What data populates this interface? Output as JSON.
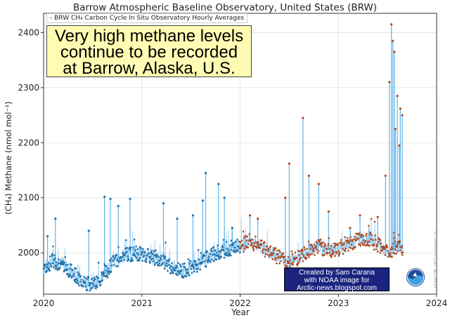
{
  "chart_data": {
    "type": "scatter",
    "title": "Barrow Atmospheric Baseline Observatory, United States (BRW)",
    "xlabel": "Year",
    "ylabel": "(CH₄) Methane (nmol mol⁻¹)",
    "xlim": [
      2020,
      2024
    ],
    "ylim": [
      1925,
      2435
    ],
    "x_ticks": [
      "2020",
      "2021",
      "2022",
      "2023",
      "2024"
    ],
    "y_ticks": [
      "2000",
      "2100",
      "2200",
      "2300",
      "2400"
    ],
    "grid": true,
    "legend": "top-left",
    "series": [
      {
        "name": "BRW CH₄ Carbon Cycle In Situ Observatory Hourly Averages",
        "color_pre2022": "#1f6fa8",
        "color_post2022": "#b5461a",
        "line_color": "#8cc8ee",
        "baseline": [
          [
            2020.0,
            1972
          ],
          [
            2020.1,
            1985
          ],
          [
            2020.2,
            1980
          ],
          [
            2020.3,
            1962
          ],
          [
            2020.4,
            1950
          ],
          [
            2020.48,
            1942
          ],
          [
            2020.55,
            1946
          ],
          [
            2020.62,
            1962
          ],
          [
            2020.72,
            1985
          ],
          [
            2020.82,
            1995
          ],
          [
            2020.92,
            2000
          ],
          [
            2021.0,
            1996
          ],
          [
            2021.1,
            1992
          ],
          [
            2021.2,
            1990
          ],
          [
            2021.3,
            1975
          ],
          [
            2021.4,
            1967
          ],
          [
            2021.5,
            1973
          ],
          [
            2021.6,
            1982
          ],
          [
            2021.7,
            1995
          ],
          [
            2021.8,
            2003
          ],
          [
            2021.9,
            2008
          ],
          [
            2022.0,
            2012
          ],
          [
            2022.1,
            2022
          ],
          [
            2022.2,
            2012
          ],
          [
            2022.3,
            2000
          ],
          [
            2022.4,
            1992
          ],
          [
            2022.5,
            1982
          ],
          [
            2022.6,
            1992
          ],
          [
            2022.7,
            2005
          ],
          [
            2022.8,
            2012
          ],
          [
            2022.9,
            2005
          ],
          [
            2023.0,
            2008
          ],
          [
            2023.1,
            2015
          ],
          [
            2023.2,
            2025
          ],
          [
            2023.3,
            2027
          ],
          [
            2023.4,
            2015
          ],
          [
            2023.5,
            2002
          ],
          [
            2023.6,
            2008
          ],
          [
            2023.66,
            2010
          ]
        ],
        "spikes": [
          [
            2020.04,
            2030
          ],
          [
            2020.12,
            2062
          ],
          [
            2020.46,
            2040
          ],
          [
            2020.62,
            2102
          ],
          [
            2020.68,
            2098
          ],
          [
            2020.76,
            2085
          ],
          [
            2020.88,
            2098
          ],
          [
            2021.22,
            2090
          ],
          [
            2021.36,
            2062
          ],
          [
            2021.52,
            2068
          ],
          [
            2021.62,
            2095
          ],
          [
            2021.65,
            2145
          ],
          [
            2021.78,
            2125
          ],
          [
            2021.84,
            2100
          ],
          [
            2021.92,
            2045
          ],
          [
            2022.1,
            2068
          ],
          [
            2022.18,
            2062
          ],
          [
            2022.46,
            2100
          ],
          [
            2022.5,
            2162
          ],
          [
            2022.64,
            2245
          ],
          [
            2022.7,
            2140
          ],
          [
            2022.8,
            2125
          ],
          [
            2022.9,
            2075
          ],
          [
            2023.12,
            2045
          ],
          [
            2023.22,
            2068
          ],
          [
            2023.4,
            2065
          ],
          [
            2023.48,
            2140
          ],
          [
            2023.52,
            2310
          ],
          [
            2023.54,
            2415
          ],
          [
            2023.555,
            2385
          ],
          [
            2023.57,
            2365
          ],
          [
            2023.58,
            2225
          ],
          [
            2023.6,
            2285
          ],
          [
            2023.62,
            2195
          ],
          [
            2023.63,
            2262
          ],
          [
            2023.65,
            2250
          ]
        ]
      }
    ]
  },
  "callout": {
    "line1": "Very high methane levels",
    "line2": "continue to be recorded",
    "line3": "at Barrow, Alaska, U.S."
  },
  "credit": {
    "line1": "Created by Sam Carana",
    "line2": "with NOAA image for",
    "line3": "Arctic-news.blogspot.com"
  },
  "noaa_logo": {
    "label": "NOAA",
    "icon": "noaa-logo-icon"
  },
  "watermark": "NOAA ESRL 2023 September 10"
}
